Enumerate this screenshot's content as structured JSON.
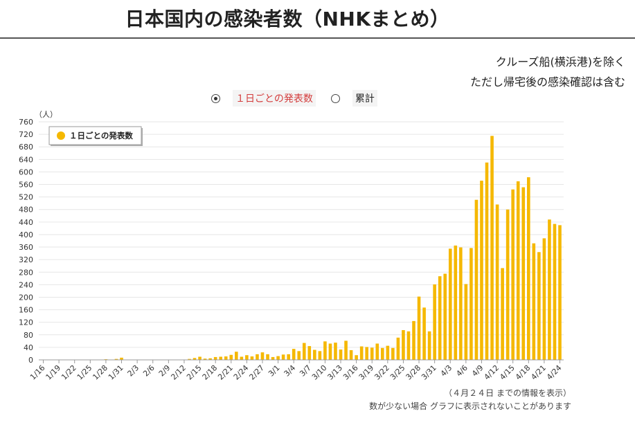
{
  "page": {
    "title": "日本国内の感染者数（NHKまとめ）",
    "note_line1": "クルーズ船(横浜港)を除く",
    "note_line2": "ただし帰宅後の感染確認は含む",
    "footnote1": "（４月２４日 までの情報を表示）",
    "footnote2": "数が少ない場合 グラフに表示されないことがあります"
  },
  "modes": [
    {
      "label": "１日ごとの発表数",
      "selected": true
    },
    {
      "label": "累計",
      "selected": false
    }
  ],
  "colors": {
    "bar": "#f5b800",
    "grid": "#e6e6e6",
    "active_mode": "#d33b3b"
  },
  "chart_data": {
    "type": "bar",
    "title": "",
    "ylabel": "（人）",
    "xlabel": "",
    "ylim": [
      0,
      760
    ],
    "yticks": [
      0,
      40,
      80,
      120,
      160,
      200,
      240,
      280,
      320,
      360,
      400,
      440,
      480,
      520,
      560,
      600,
      640,
      680,
      720,
      760
    ],
    "legend": {
      "label": "１日ごとの発表数",
      "position": "top-left"
    },
    "x_tick_labels": [
      "1/16",
      "1/19",
      "1/22",
      "1/25",
      "1/28",
      "1/31",
      "2/3",
      "2/6",
      "2/9",
      "2/12",
      "2/15",
      "2/18",
      "2/21",
      "2/24",
      "2/27",
      "3/1",
      "3/4",
      "3/7",
      "3/10",
      "3/13",
      "3/16",
      "3/19",
      "3/22",
      "3/25",
      "3/28",
      "3/31",
      "4/3",
      "4/6",
      "4/9",
      "4/12",
      "4/15",
      "4/18",
      "4/21",
      "4/24"
    ],
    "categories": [
      "1/16",
      "1/17",
      "1/18",
      "1/19",
      "1/20",
      "1/21",
      "1/22",
      "1/23",
      "1/24",
      "1/25",
      "1/26",
      "1/27",
      "1/28",
      "1/29",
      "1/30",
      "1/31",
      "2/1",
      "2/2",
      "2/3",
      "2/4",
      "2/5",
      "2/6",
      "2/7",
      "2/8",
      "2/9",
      "2/10",
      "2/11",
      "2/12",
      "2/13",
      "2/14",
      "2/15",
      "2/16",
      "2/17",
      "2/18",
      "2/19",
      "2/20",
      "2/21",
      "2/22",
      "2/23",
      "2/24",
      "2/25",
      "2/26",
      "2/27",
      "2/28",
      "2/29",
      "3/1",
      "3/2",
      "3/3",
      "3/4",
      "3/5",
      "3/6",
      "3/7",
      "3/8",
      "3/9",
      "3/10",
      "3/11",
      "3/12",
      "3/13",
      "3/14",
      "3/15",
      "3/16",
      "3/17",
      "3/18",
      "3/19",
      "3/20",
      "3/21",
      "3/22",
      "3/23",
      "3/24",
      "3/25",
      "3/26",
      "3/27",
      "3/28",
      "3/29",
      "3/30",
      "3/31",
      "4/1",
      "4/2",
      "4/3",
      "4/4",
      "4/5",
      "4/6",
      "4/7",
      "4/8",
      "4/9",
      "4/10",
      "4/11",
      "4/12",
      "4/13",
      "4/14",
      "4/15",
      "4/16",
      "4/17",
      "4/18",
      "4/19",
      "4/20",
      "4/21",
      "4/22",
      "4/23",
      "4/24"
    ],
    "values": [
      1,
      0,
      0,
      0,
      0,
      0,
      0,
      0,
      1,
      0,
      1,
      0,
      2,
      1,
      3,
      7,
      0,
      0,
      0,
      0,
      1,
      0,
      0,
      0,
      0,
      0,
      0,
      0,
      3,
      6,
      10,
      4,
      5,
      9,
      10,
      11,
      16,
      26,
      10,
      15,
      11,
      18,
      24,
      18,
      9,
      12,
      17,
      18,
      35,
      28,
      54,
      44,
      32,
      28,
      59,
      52,
      55,
      33,
      61,
      31,
      15,
      43,
      41,
      39,
      52,
      38,
      45,
      38,
      71,
      95,
      91,
      124,
      202,
      167,
      91,
      241,
      267,
      275,
      355,
      365,
      359,
      242,
      357,
      511,
      572,
      630,
      715,
      496,
      293,
      480,
      544,
      570,
      551,
      583,
      372,
      344,
      388,
      448,
      434,
      430
    ]
  }
}
